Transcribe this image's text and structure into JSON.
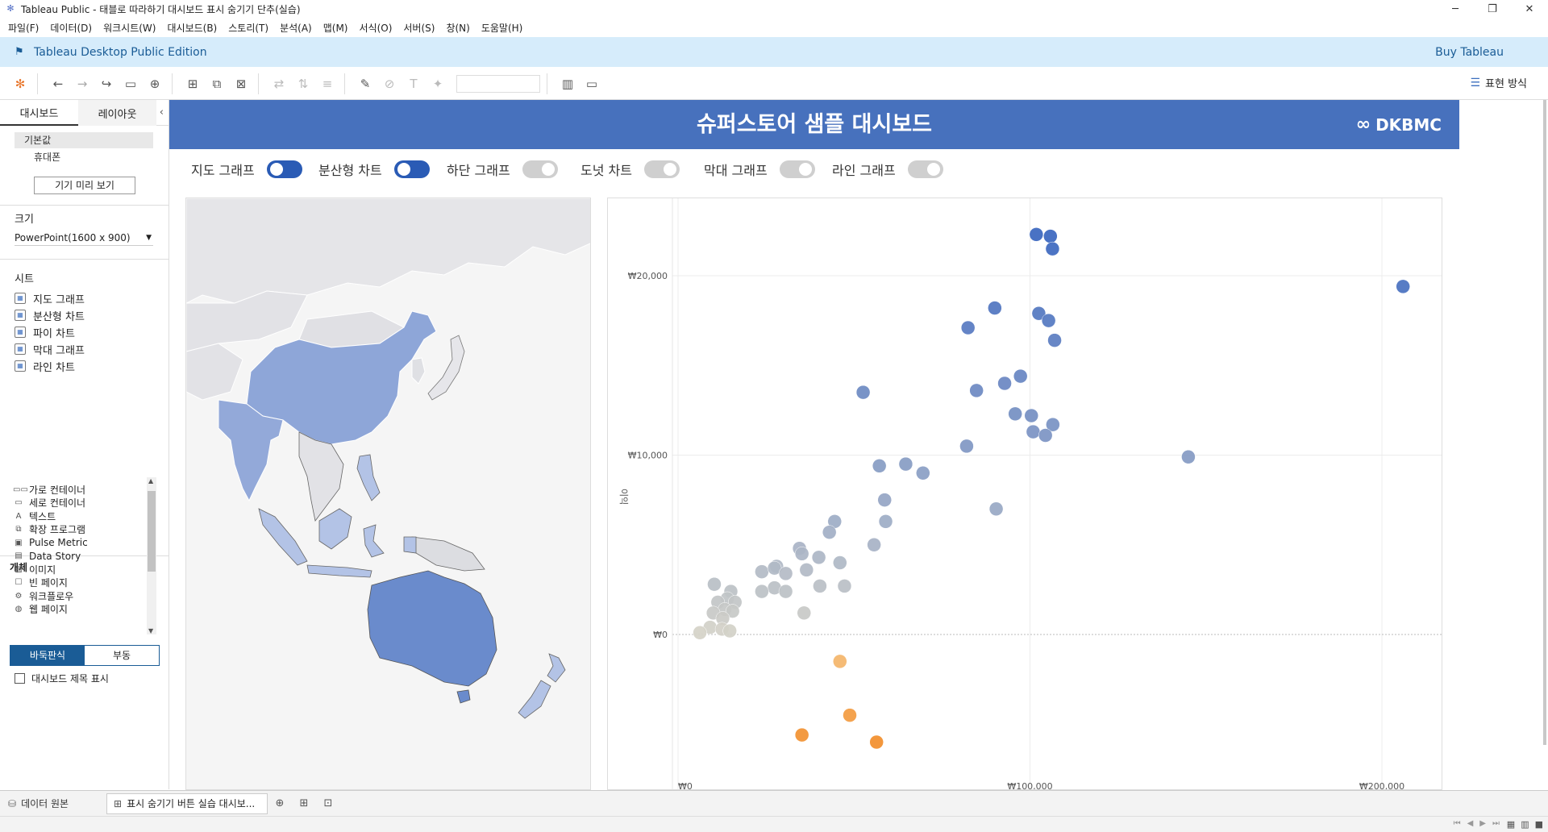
{
  "window": {
    "title": "Tableau Public - 태블로 따라하기 대시보드 표시 숨기기 단추(실습)",
    "controls": [
      "─",
      "❐",
      "✕"
    ]
  },
  "menu": [
    "파일(F)",
    "데이터(D)",
    "워크시트(W)",
    "대시보드(B)",
    "스토리(T)",
    "분석(A)",
    "맵(M)",
    "서식(O)",
    "서버(S)",
    "창(N)",
    "도움말(H)"
  ],
  "banner": {
    "edition": "Tableau Desktop Public Edition",
    "buy": "Buy Tableau"
  },
  "toolbar": {
    "present_label": "표현 방식"
  },
  "left_pane": {
    "tabs": [
      "대시보드",
      "레이아웃"
    ],
    "devices": [
      "기본값",
      "휴대폰"
    ],
    "preview_button": "기기 미리 보기",
    "size_heading": "크기",
    "size_value": "PowerPoint(1600 x 900)",
    "sheets_heading": "시트",
    "sheets": [
      "지도 그래프",
      "분산형 차트",
      "파이 차트",
      "막대 그래프",
      "라인 차트"
    ],
    "objects_heading": "개체",
    "objects": [
      {
        "icon": "horizontal-container-icon",
        "glyph": "▭▭",
        "label": "가로 컨테이너"
      },
      {
        "icon": "vertical-container-icon",
        "glyph": "▭",
        "label": "세로 컨테이너"
      },
      {
        "icon": "text-icon",
        "glyph": "A",
        "label": "텍스트"
      },
      {
        "icon": "extension-icon",
        "glyph": "⧉",
        "label": "확장 프로그램"
      },
      {
        "icon": "pulse-metric-icon",
        "glyph": "▣",
        "label": "Pulse Metric"
      },
      {
        "icon": "data-story-icon",
        "glyph": "▤",
        "label": "Data Story"
      },
      {
        "icon": "image-icon",
        "glyph": "▨",
        "label": "이미지"
      },
      {
        "icon": "blank-icon",
        "glyph": "☐",
        "label": "빈 페이지"
      },
      {
        "icon": "workflow-icon",
        "glyph": "⚙",
        "label": "워크플로우"
      },
      {
        "icon": "web-page-icon",
        "glyph": "◍",
        "label": "웹 페이지"
      }
    ],
    "tiled_label": "바둑판식",
    "floating_label": "부동",
    "show_title_label": "대시보드 제목 표시"
  },
  "dashboard": {
    "title": "슈퍼스토어 샘플 대시보드",
    "brand": "DKBMC",
    "toggles": [
      {
        "label": "지도 그래프",
        "on": true
      },
      {
        "label": "분산형 차트",
        "on": true
      },
      {
        "label": "하단 그래프",
        "on": false
      },
      {
        "label": "도넛 차트",
        "on": false
      },
      {
        "label": "막대 그래프",
        "on": false
      },
      {
        "label": "라인 그래프",
        "on": false
      }
    ]
  },
  "map": {
    "colors": {
      "land": "#e2e2e6",
      "highlight_dark": "#6a8bcc",
      "highlight_mid": "#8ea6d8",
      "highlight_light": "#b3c3e6",
      "sea": "#f5f5f5"
    }
  },
  "chart_data": {
    "type": "scatter",
    "ylabel": "이익",
    "xticks": [
      "₩0",
      "₩100,000",
      "₩200,000"
    ],
    "yticks": [
      "₩0",
      "₩10,000",
      "₩20,000"
    ],
    "xlim": [
      0,
      220000
    ],
    "ylim": [
      -8500,
      24000
    ],
    "color_scale": {
      "negative": "#f28e2b",
      "low": "#d7d4c8",
      "high": "#3a66bf"
    },
    "points": [
      {
        "x": 101800,
        "y": 22300
      },
      {
        "x": 105800,
        "y": 22200
      },
      {
        "x": 106400,
        "y": 21500
      },
      {
        "x": 206000,
        "y": 19400
      },
      {
        "x": 90000,
        "y": 18200
      },
      {
        "x": 102500,
        "y": 17900
      },
      {
        "x": 105300,
        "y": 17500
      },
      {
        "x": 82400,
        "y": 17100
      },
      {
        "x": 107000,
        "y": 16400
      },
      {
        "x": 97300,
        "y": 14400
      },
      {
        "x": 92800,
        "y": 14000
      },
      {
        "x": 84800,
        "y": 13600
      },
      {
        "x": 52600,
        "y": 13500
      },
      {
        "x": 95800,
        "y": 12300
      },
      {
        "x": 100400,
        "y": 12200
      },
      {
        "x": 106500,
        "y": 11700
      },
      {
        "x": 100900,
        "y": 11300
      },
      {
        "x": 104400,
        "y": 11100
      },
      {
        "x": 82000,
        "y": 10500
      },
      {
        "x": 145000,
        "y": 9900
      },
      {
        "x": 64700,
        "y": 9500
      },
      {
        "x": 57200,
        "y": 9400
      },
      {
        "x": 69600,
        "y": 9000
      },
      {
        "x": 58700,
        "y": 7500
      },
      {
        "x": 90400,
        "y": 7000
      },
      {
        "x": 59000,
        "y": 6300
      },
      {
        "x": 44500,
        "y": 6300
      },
      {
        "x": 43000,
        "y": 5700
      },
      {
        "x": 55700,
        "y": 5000
      },
      {
        "x": 34500,
        "y": 4800
      },
      {
        "x": 35200,
        "y": 4500
      },
      {
        "x": 40000,
        "y": 4300
      },
      {
        "x": 46000,
        "y": 4000
      },
      {
        "x": 36500,
        "y": 3600
      },
      {
        "x": 23800,
        "y": 3500
      },
      {
        "x": 28000,
        "y": 3800
      },
      {
        "x": 27400,
        "y": 3700
      },
      {
        "x": 30600,
        "y": 3400
      },
      {
        "x": 10300,
        "y": 2800
      },
      {
        "x": 40300,
        "y": 2700
      },
      {
        "x": 47300,
        "y": 2700
      },
      {
        "x": 27400,
        "y": 2600
      },
      {
        "x": 30600,
        "y": 2400
      },
      {
        "x": 15000,
        "y": 2400
      },
      {
        "x": 23800,
        "y": 2400
      },
      {
        "x": 14000,
        "y": 2000
      },
      {
        "x": 11300,
        "y": 1800
      },
      {
        "x": 16200,
        "y": 1800
      },
      {
        "x": 13300,
        "y": 1400
      },
      {
        "x": 10000,
        "y": 1200
      },
      {
        "x": 15500,
        "y": 1300
      },
      {
        "x": 12700,
        "y": 900
      },
      {
        "x": 35800,
        "y": 1200
      },
      {
        "x": 9100,
        "y": 400
      },
      {
        "x": 12500,
        "y": 300
      },
      {
        "x": 6200,
        "y": 100
      },
      {
        "x": 14700,
        "y": 200
      },
      {
        "x": 46000,
        "y": -1500
      },
      {
        "x": 48800,
        "y": -4500
      },
      {
        "x": 35200,
        "y": -5600
      },
      {
        "x": 56400,
        "y": -6000
      }
    ]
  }
}
